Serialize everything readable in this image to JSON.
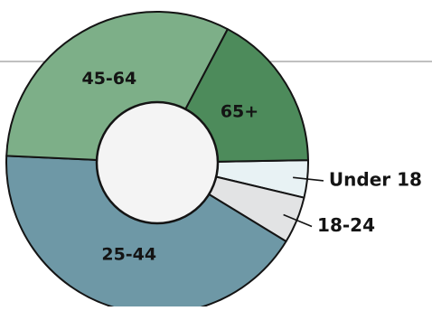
{
  "chart_data": {
    "type": "pie",
    "donut": true,
    "title": "",
    "categories": [
      "Under 18",
      "18-24",
      "25-44",
      "45-64",
      "65+"
    ],
    "values": [
      4,
      5,
      42,
      32,
      17
    ],
    "colors": [
      "#e8f2f4",
      "#e2e3e4",
      "#6e98a6",
      "#7daf88",
      "#4d8b5b"
    ],
    "label_placement": [
      "outside",
      "outside",
      "inside",
      "inside",
      "inside"
    ]
  }
}
